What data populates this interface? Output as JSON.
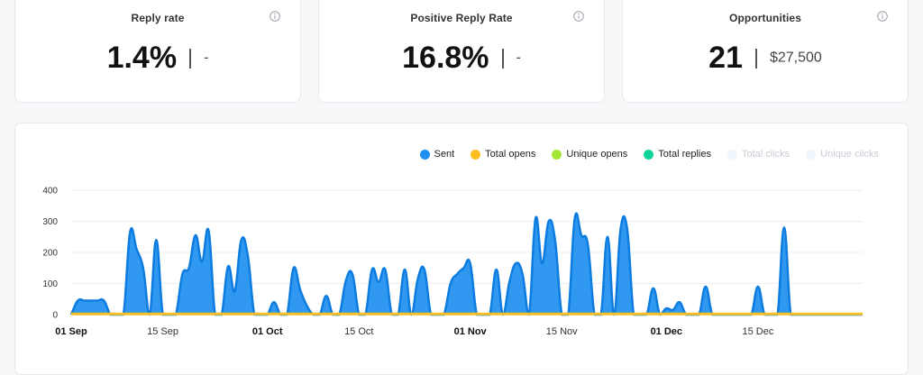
{
  "cards": [
    {
      "title": "Reply rate",
      "value": "1.4%",
      "secondary": "-"
    },
    {
      "title": "Positive Reply Rate",
      "value": "16.8%",
      "secondary": "-"
    },
    {
      "title": "Opportunities",
      "value": "21",
      "secondary": "$27,500"
    }
  ],
  "legend": [
    {
      "label": "Sent",
      "color": "#1e8ff0",
      "faded": false
    },
    {
      "label": "Total opens",
      "color": "#fbbf24",
      "faded": false
    },
    {
      "label": "Unique opens",
      "color": "#a3e635",
      "faded": false
    },
    {
      "label": "Total replies",
      "color": "#10d39a",
      "faded": false
    },
    {
      "label": "Total clicks",
      "color": "#eef6fb",
      "faded": true
    },
    {
      "label": "Unique clicks",
      "color": "#eef6fb",
      "faded": true
    }
  ],
  "chart_data": {
    "type": "area",
    "ylim": [
      0,
      400
    ],
    "yticks": [
      0,
      100,
      200,
      300,
      400
    ],
    "xtick_labels": [
      {
        "label": "01 Sep",
        "day": 0,
        "bold": true
      },
      {
        "label": "15 Sep",
        "day": 14,
        "bold": false
      },
      {
        "label": "01 Oct",
        "day": 30,
        "bold": true
      },
      {
        "label": "15 Oct",
        "day": 44,
        "bold": false
      },
      {
        "label": "01 Nov",
        "day": 61,
        "bold": true
      },
      {
        "label": "15 Nov",
        "day": 75,
        "bold": false
      },
      {
        "label": "01 Dec",
        "day": 91,
        "bold": true
      },
      {
        "label": "15 Dec",
        "day": 105,
        "bold": false
      }
    ],
    "x_domain": [
      0,
      121
    ],
    "series": [
      {
        "name": "Sent",
        "color": "#1e8ff0",
        "values": [
          0,
          45,
          45,
          45,
          45,
          45,
          0,
          0,
          0,
          265,
          210,
          150,
          0,
          240,
          0,
          0,
          0,
          130,
          150,
          255,
          170,
          270,
          0,
          0,
          155,
          75,
          240,
          190,
          0,
          0,
          0,
          40,
          0,
          0,
          150,
          80,
          30,
          0,
          0,
          60,
          0,
          0,
          110,
          130,
          0,
          0,
          145,
          105,
          145,
          0,
          0,
          145,
          0,
          115,
          145,
          0,
          0,
          0,
          100,
          130,
          150,
          165,
          0,
          0,
          0,
          145,
          0,
          105,
          165,
          130,
          0,
          310,
          165,
          300,
          235,
          0,
          0,
          310,
          255,
          225,
          0,
          0,
          250,
          0,
          275,
          275,
          0,
          0,
          0,
          85,
          0,
          20,
          15,
          40,
          0,
          0,
          0,
          90,
          0,
          0,
          0,
          0,
          0,
          0,
          0,
          90,
          0,
          0,
          0,
          280,
          0,
          0,
          0,
          0,
          0,
          0,
          0,
          0,
          0,
          0,
          0,
          0
        ]
      },
      {
        "name": "Total opens",
        "color": "#fbbf24",
        "values": [
          2,
          2,
          2,
          2,
          2,
          2,
          2,
          2,
          2,
          2,
          2,
          2,
          2,
          2,
          2,
          2,
          2,
          2,
          2,
          2,
          2,
          2,
          2,
          2,
          2,
          2,
          2,
          2,
          2,
          2,
          2,
          2,
          2,
          2,
          2,
          2,
          2,
          2,
          2,
          2,
          2,
          2,
          2,
          2,
          2,
          2,
          2,
          2,
          2,
          2,
          2,
          2,
          2,
          2,
          2,
          2,
          2,
          2,
          2,
          2,
          2,
          2,
          2,
          2,
          2,
          2,
          2,
          2,
          2,
          2,
          2,
          2,
          2,
          2,
          2,
          2,
          2,
          2,
          2,
          2,
          2,
          2,
          2,
          2,
          2,
          2,
          2,
          2,
          2,
          2,
          2,
          2,
          2,
          2,
          2,
          2,
          2,
          2,
          2,
          2,
          2,
          2,
          2,
          2,
          2,
          2,
          2,
          2,
          2,
          2,
          2,
          2,
          2,
          2,
          2,
          2,
          2,
          2,
          2,
          2,
          2,
          2
        ]
      }
    ]
  }
}
